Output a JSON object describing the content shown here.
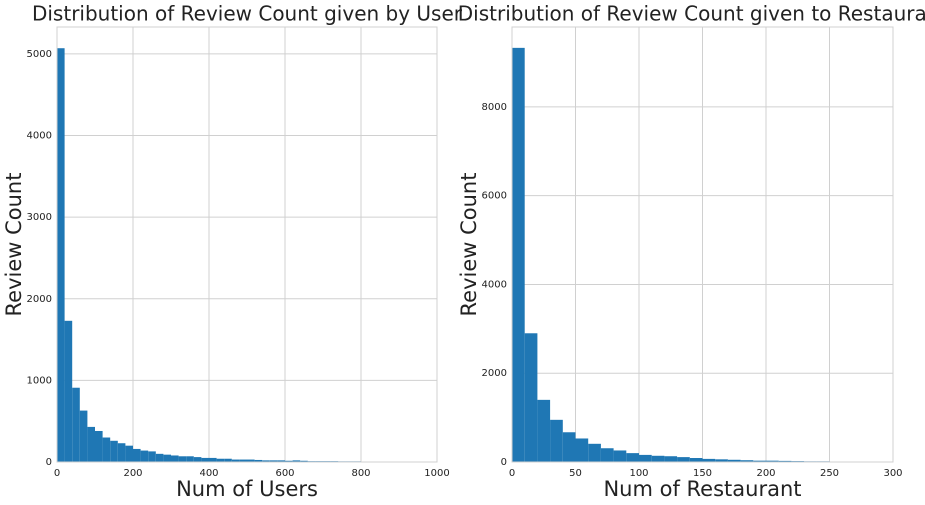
{
  "chart_data": [
    {
      "type": "histogram",
      "title": "Distribution of Review Count given by User",
      "x_label": "Num of Users",
      "y_label": "Review Count",
      "color": "#1f77b4",
      "grid": true,
      "bins": [
        0,
        20,
        40,
        60,
        80,
        100,
        120,
        140,
        160,
        180,
        200,
        220,
        240,
        260,
        280,
        300,
        320,
        340,
        360,
        380,
        400,
        420,
        440,
        460,
        480,
        500,
        520,
        540,
        560,
        580,
        600,
        620,
        640,
        660,
        680,
        700,
        720,
        740,
        760,
        780,
        800,
        820,
        840,
        860,
        880,
        900,
        920,
        940,
        960,
        980
      ],
      "values": [
        5070,
        1730,
        910,
        630,
        430,
        380,
        300,
        260,
        230,
        200,
        160,
        140,
        130,
        100,
        90,
        80,
        70,
        70,
        60,
        50,
        50,
        40,
        40,
        30,
        30,
        30,
        25,
        20,
        20,
        20,
        15,
        20,
        15,
        10,
        10,
        10,
        10,
        8,
        8,
        8,
        6,
        6,
        5,
        5,
        5,
        5,
        4,
        4,
        3
      ],
      "xlim": [
        0,
        1000
      ],
      "ylim": [
        0,
        5330
      ],
      "xticks": [
        0,
        200,
        400,
        600,
        800,
        1000
      ],
      "yticks": [
        0,
        1000,
        2000,
        3000,
        4000,
        5000
      ]
    },
    {
      "type": "histogram",
      "title": "Distribution of Review Count given to Restaurant",
      "x_label": "Num of Restaurant",
      "y_label": "Review Count",
      "color": "#1f77b4",
      "grid": true,
      "bins": [
        0,
        10,
        20,
        30,
        40,
        50,
        60,
        70,
        80,
        90,
        100,
        110,
        120,
        130,
        140,
        150,
        160,
        170,
        180,
        190,
        200,
        210,
        220,
        230,
        240,
        250,
        260,
        270,
        280,
        290
      ],
      "values": [
        9330,
        2900,
        1400,
        950,
        670,
        530,
        410,
        310,
        260,
        200,
        160,
        140,
        130,
        110,
        90,
        70,
        60,
        50,
        40,
        30,
        30,
        25,
        20,
        15,
        15,
        10,
        10,
        5,
        5
      ],
      "xlim": [
        0,
        300
      ],
      "ylim": [
        0,
        9800
      ],
      "xticks": [
        0,
        50,
        100,
        150,
        200,
        250,
        300
      ],
      "yticks": [
        0,
        2000,
        4000,
        6000,
        8000
      ]
    }
  ]
}
